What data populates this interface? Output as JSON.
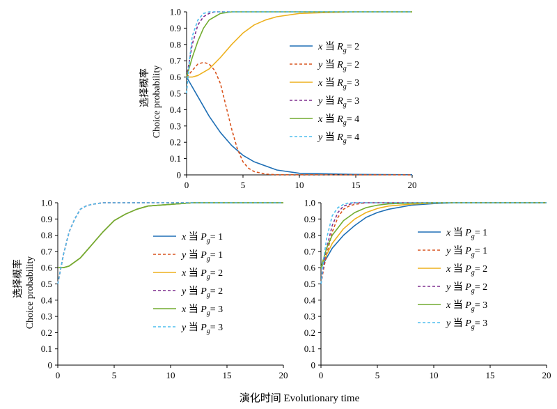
{
  "figure": {
    "xlabel": "演化时间 Evolutionary time",
    "ylabel_cn": "选择概率",
    "ylabel_en": "Choice probability"
  },
  "colors": {
    "blue": "#1f6fb5",
    "red": "#d9541e",
    "orange": "#edb11f",
    "purple": "#7e2f8e",
    "green": "#72ac30",
    "cyan": "#4dbeee"
  },
  "chart_data": [
    {
      "type": "line",
      "panel": "top",
      "xlim": [
        0,
        20
      ],
      "ylim": [
        0,
        1.0
      ],
      "xticks": [
        "0",
        "5",
        "10",
        "15",
        "20"
      ],
      "yticks": [
        "0",
        "0.1",
        "0.2",
        "0.3",
        "0.4",
        "0.5",
        "0.6",
        "0.7",
        "0.8",
        "0.9",
        "1.0"
      ],
      "ylabel_cn": "选择概率",
      "ylabel_en": "Choice probability",
      "legend_position": "right",
      "series": [
        {
          "var": "x",
          "mid": " 当 ",
          "param": "R",
          "sub": "g",
          "eq": "= 2",
          "color": "#1f6fb5",
          "dash": false,
          "x": [
            0,
            1,
            2,
            3,
            4,
            5,
            6,
            8,
            10,
            15,
            20
          ],
          "y": [
            0.6,
            0.48,
            0.36,
            0.26,
            0.18,
            0.12,
            0.08,
            0.03,
            0.01,
            0.003,
            0.001
          ]
        },
        {
          "var": "y",
          "mid": " 当 ",
          "param": "R",
          "sub": "g",
          "eq": "= 2",
          "color": "#d9541e",
          "dash": true,
          "x": [
            0,
            1,
            1.5,
            2,
            2.5,
            3,
            3.5,
            4,
            4.5,
            5,
            5.5,
            6,
            7,
            8,
            20
          ],
          "y": [
            0.6,
            0.68,
            0.69,
            0.68,
            0.64,
            0.56,
            0.42,
            0.28,
            0.16,
            0.08,
            0.04,
            0.02,
            0.005,
            0.001,
            0.0
          ]
        },
        {
          "var": "x",
          "mid": " 当 ",
          "param": "R",
          "sub": "g",
          "eq": "= 3",
          "color": "#edb11f",
          "dash": false,
          "x": [
            0,
            0.5,
            1,
            2,
            3,
            4,
            5,
            6,
            7,
            8,
            10,
            12,
            15,
            20
          ],
          "y": [
            0.6,
            0.6,
            0.61,
            0.65,
            0.72,
            0.8,
            0.87,
            0.92,
            0.95,
            0.97,
            0.99,
            0.995,
            1.0,
            1.0
          ]
        },
        {
          "var": "y",
          "mid": " 当 ",
          "param": "R",
          "sub": "g",
          "eq": "= 3",
          "color": "#7e2f8e",
          "dash": true,
          "x": [
            0,
            0.5,
            1,
            1.5,
            2,
            2.5,
            3,
            4,
            5,
            20
          ],
          "y": [
            0.6,
            0.8,
            0.92,
            0.97,
            0.99,
            1.0,
            1.0,
            1.0,
            1.0,
            1.0
          ]
        },
        {
          "var": "x",
          "mid": " 当 ",
          "param": "R",
          "sub": "g",
          "eq": "= 4",
          "color": "#72ac30",
          "dash": false,
          "x": [
            0,
            0.5,
            1,
            1.5,
            2,
            2.5,
            3,
            4,
            5,
            20
          ],
          "y": [
            0.6,
            0.72,
            0.82,
            0.9,
            0.95,
            0.97,
            0.99,
            1.0,
            1.0,
            1.0
          ]
        },
        {
          "var": "y",
          "mid": " 当 ",
          "param": "R",
          "sub": "g",
          "eq": "= 4",
          "color": "#4dbeee",
          "dash": true,
          "x": [
            0,
            0.25,
            0.5,
            1,
            1.5,
            2,
            2.5,
            3,
            20
          ],
          "y": [
            0.5,
            0.7,
            0.85,
            0.95,
            0.99,
            1.0,
            1.0,
            1.0,
            1.0
          ]
        }
      ]
    },
    {
      "type": "line",
      "panel": "bottom-left",
      "xlim": [
        0,
        20
      ],
      "ylim": [
        0,
        1.0
      ],
      "xticks": [
        "0",
        "5",
        "10",
        "15",
        "20"
      ],
      "yticks": [
        "0",
        "0.1",
        "0.2",
        "0.3",
        "0.4",
        "0.5",
        "0.6",
        "0.7",
        "0.8",
        "0.9",
        "1.0"
      ],
      "ylabel_cn": "选择概率",
      "ylabel_en": "Choice probability",
      "legend_position": "right",
      "series": [
        {
          "var": "x",
          "mid": " 当 ",
          "param": "P",
          "sub": "g",
          "eq": "= 1",
          "color": "#1f6fb5",
          "dash": false,
          "x": [
            0,
            0.5,
            1,
            2,
            3,
            4,
            5,
            6,
            7,
            8,
            10,
            12,
            15,
            20
          ],
          "y": [
            0.6,
            0.6,
            0.61,
            0.66,
            0.74,
            0.82,
            0.89,
            0.93,
            0.96,
            0.98,
            0.99,
            1.0,
            1.0,
            1.0
          ]
        },
        {
          "var": "y",
          "mid": " 当 ",
          "param": "P",
          "sub": "g",
          "eq": "= 1",
          "color": "#d9541e",
          "dash": true,
          "x": [
            0,
            0.5,
            1,
            1.5,
            2,
            2.5,
            3,
            4,
            5,
            20
          ],
          "y": [
            0.5,
            0.68,
            0.82,
            0.9,
            0.96,
            0.98,
            0.99,
            1.0,
            1.0,
            1.0
          ]
        },
        {
          "var": "x",
          "mid": " 当 ",
          "param": "P",
          "sub": "g",
          "eq": "= 2",
          "color": "#edb11f",
          "dash": false,
          "x": [
            0,
            0.5,
            1,
            2,
            3,
            4,
            5,
            6,
            7,
            8,
            10,
            12,
            15,
            20
          ],
          "y": [
            0.6,
            0.6,
            0.61,
            0.66,
            0.74,
            0.82,
            0.89,
            0.93,
            0.96,
            0.98,
            0.99,
            1.0,
            1.0,
            1.0
          ]
        },
        {
          "var": "y",
          "mid": " 当 ",
          "param": "P",
          "sub": "g",
          "eq": "= 2",
          "color": "#7e2f8e",
          "dash": true,
          "x": [
            0,
            0.5,
            1,
            1.5,
            2,
            2.5,
            3,
            4,
            5,
            20
          ],
          "y": [
            0.5,
            0.68,
            0.82,
            0.9,
            0.96,
            0.98,
            0.99,
            1.0,
            1.0,
            1.0
          ]
        },
        {
          "var": "x",
          "mid": " 当 ",
          "param": "P",
          "sub": "g",
          "eq": "= 3",
          "color": "#72ac30",
          "dash": false,
          "x": [
            0,
            0.5,
            1,
            2,
            3,
            4,
            5,
            6,
            7,
            8,
            10,
            12,
            15,
            20
          ],
          "y": [
            0.6,
            0.6,
            0.61,
            0.66,
            0.74,
            0.82,
            0.89,
            0.93,
            0.96,
            0.98,
            0.99,
            1.0,
            1.0,
            1.0
          ]
        },
        {
          "var": "y",
          "mid": " 当 ",
          "param": "P",
          "sub": "g",
          "eq": "= 3",
          "color": "#4dbeee",
          "dash": true,
          "x": [
            0,
            0.5,
            1,
            1.5,
            2,
            2.5,
            3,
            4,
            5,
            20
          ],
          "y": [
            0.5,
            0.68,
            0.82,
            0.9,
            0.96,
            0.98,
            0.99,
            1.0,
            1.0,
            1.0
          ]
        }
      ]
    },
    {
      "type": "line",
      "panel": "bottom-right",
      "xlim": [
        0,
        20
      ],
      "ylim": [
        0,
        1.0
      ],
      "xticks": [
        "0",
        "5",
        "10",
        "15",
        "20"
      ],
      "yticks": [
        "0",
        "0.1",
        "0.2",
        "0.3",
        "0.4",
        "0.5",
        "0.6",
        "0.7",
        "0.8",
        "0.9",
        "1.0"
      ],
      "legend_position": "right",
      "series": [
        {
          "var": "x",
          "mid": " 当 ",
          "param": "P",
          "sub": "g",
          "eq": "= 1",
          "color": "#1f6fb5",
          "dash": false,
          "x": [
            0,
            0.5,
            1,
            2,
            3,
            4,
            5,
            6,
            8,
            10,
            12,
            15,
            20
          ],
          "y": [
            0.6,
            0.66,
            0.72,
            0.8,
            0.86,
            0.91,
            0.94,
            0.96,
            0.985,
            0.995,
            1.0,
            1.0,
            1.0
          ]
        },
        {
          "var": "y",
          "mid": " 当 ",
          "param": "P",
          "sub": "g",
          "eq": "= 1",
          "color": "#d9541e",
          "dash": true,
          "x": [
            0,
            0.25,
            0.5,
            1,
            1.5,
            2,
            2.5,
            3,
            4,
            5,
            20
          ],
          "y": [
            0.5,
            0.6,
            0.68,
            0.82,
            0.91,
            0.96,
            0.98,
            0.99,
            1.0,
            1.0,
            1.0
          ]
        },
        {
          "var": "x",
          "mid": " 当 ",
          "param": "P",
          "sub": "g",
          "eq": "= 2",
          "color": "#edb11f",
          "dash": false,
          "x": [
            0,
            0.5,
            1,
            2,
            3,
            4,
            5,
            6,
            8,
            10,
            12,
            20
          ],
          "y": [
            0.6,
            0.68,
            0.75,
            0.84,
            0.9,
            0.94,
            0.965,
            0.98,
            0.992,
            0.998,
            1.0,
            1.0
          ]
        },
        {
          "var": "y",
          "mid": " 当 ",
          "param": "P",
          "sub": "g",
          "eq": "= 2",
          "color": "#7e2f8e",
          "dash": true,
          "x": [
            0,
            0.25,
            0.5,
            1,
            1.5,
            2,
            2.5,
            3,
            4,
            20
          ],
          "y": [
            0.5,
            0.62,
            0.72,
            0.86,
            0.94,
            0.98,
            0.99,
            1.0,
            1.0,
            1.0
          ]
        },
        {
          "var": "x",
          "mid": " 当 ",
          "param": "P",
          "sub": "g",
          "eq": "= 3",
          "color": "#72ac30",
          "dash": false,
          "x": [
            0,
            0.5,
            1,
            2,
            3,
            4,
            5,
            6,
            8,
            10,
            20
          ],
          "y": [
            0.6,
            0.72,
            0.8,
            0.89,
            0.94,
            0.97,
            0.985,
            0.993,
            0.998,
            1.0,
            1.0
          ]
        },
        {
          "var": "y",
          "mid": " 当 ",
          "param": "P",
          "sub": "g",
          "eq": "= 3",
          "color": "#4dbeee",
          "dash": true,
          "x": [
            0,
            0.25,
            0.5,
            1,
            1.5,
            2,
            2.5,
            3,
            20
          ],
          "y": [
            0.5,
            0.66,
            0.78,
            0.92,
            0.97,
            0.99,
            1.0,
            1.0,
            1.0
          ]
        }
      ]
    }
  ]
}
